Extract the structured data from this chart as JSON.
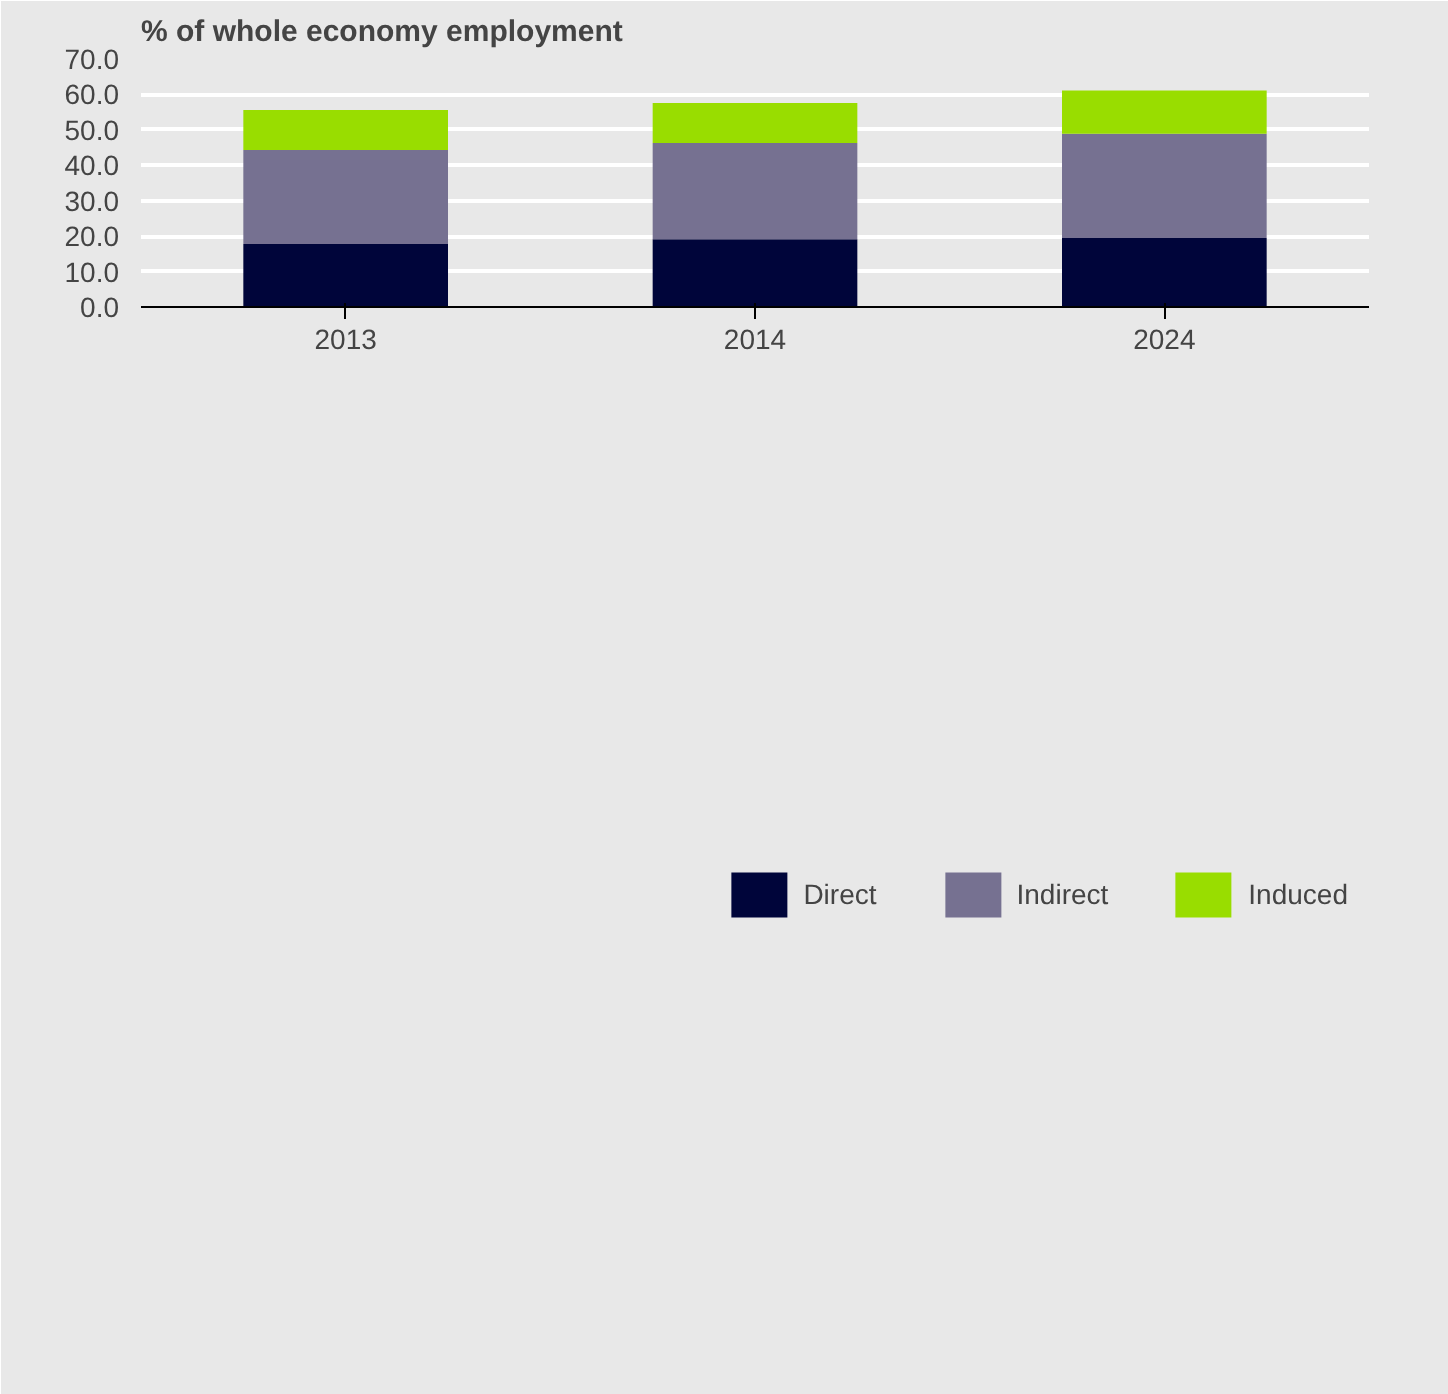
{
  "chart_data": {
    "type": "bar",
    "title": "% of whole economy employment",
    "categories": [
      "2013",
      "2014",
      "2024"
    ],
    "stacked": true,
    "series": [
      {
        "name": "Direct",
        "color": "#00053a",
        "values": [
          17.8,
          19.1,
          19.5
        ]
      },
      {
        "name": "Indirect",
        "color": "#767191",
        "values": [
          26.5,
          27.2,
          29.4
        ]
      },
      {
        "name": "Induced",
        "color": "#99dd00",
        "values": [
          11.3,
          11.3,
          12.2
        ]
      }
    ],
    "ylim": [
      0,
      70
    ],
    "yticks": [
      {
        "value": 0,
        "label": "0.0"
      },
      {
        "value": 10,
        "label": "10.0"
      },
      {
        "value": 20,
        "label": "20.0"
      },
      {
        "value": 30,
        "label": "30.0"
      },
      {
        "value": 40,
        "label": "40.0"
      },
      {
        "value": 50,
        "label": "50.0"
      },
      {
        "value": 60,
        "label": "60.0"
      },
      {
        "value": 70,
        "label": "70.0"
      }
    ],
    "grid": "y",
    "legend": "bottom"
  }
}
